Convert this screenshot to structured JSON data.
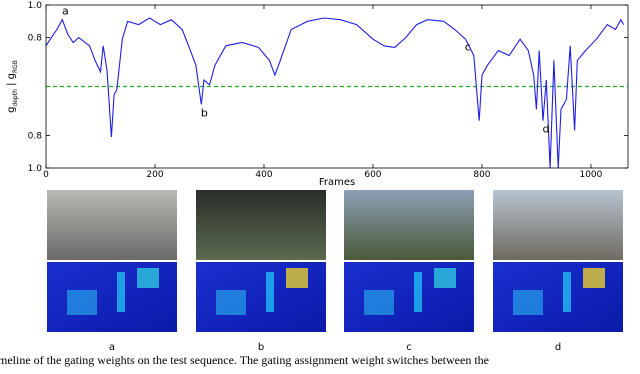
{
  "chart_data": {
    "type": "line",
    "ylabel": [
      "g",
      "depth",
      " | g",
      "RGB"
    ],
    "xlabel": "Frames",
    "x": [
      0,
      10,
      20,
      30,
      40,
      50,
      60,
      80,
      90,
      100,
      105,
      112,
      120,
      125,
      130,
      140,
      150,
      170,
      190,
      210,
      230,
      250,
      265,
      275,
      285,
      290,
      300,
      310,
      330,
      360,
      390,
      410,
      420,
      430,
      450,
      480,
      510,
      540,
      570,
      600,
      620,
      640,
      660,
      680,
      700,
      730,
      750,
      770,
      785,
      795,
      800,
      810,
      830,
      850,
      870,
      885,
      895,
      900,
      905,
      912,
      918,
      925,
      932,
      940,
      945,
      955,
      962,
      970,
      975,
      990,
      1010,
      1030,
      1045,
      1055,
      1060
    ],
    "series": [
      {
        "color": "#1f1fe0",
        "values": [
          0.75,
          0.8,
          0.85,
          0.91,
          0.82,
          0.77,
          0.8,
          0.75,
          0.66,
          0.59,
          0.75,
          0.6,
          0.19,
          0.45,
          0.48,
          0.79,
          0.9,
          0.88,
          0.92,
          0.88,
          0.91,
          0.85,
          0.72,
          0.63,
          0.39,
          0.54,
          0.51,
          0.63,
          0.75,
          0.77,
          0.74,
          0.66,
          0.57,
          0.66,
          0.85,
          0.9,
          0.92,
          0.91,
          0.88,
          0.79,
          0.75,
          0.74,
          0.8,
          0.88,
          0.91,
          0.9,
          0.85,
          0.79,
          0.69,
          0.29,
          0.57,
          0.63,
          0.72,
          0.69,
          0.79,
          0.72,
          0.57,
          0.36,
          0.72,
          0.29,
          0.54,
          0.0,
          0.66,
          0.0,
          0.36,
          0.42,
          0.75,
          0.23,
          0.66,
          0.72,
          0.79,
          0.88,
          0.85,
          0.91,
          0.88
        ]
      }
    ],
    "xlim": [
      0,
      1068
    ],
    "ylim": [
      0,
      1
    ],
    "xticks": [
      0,
      200,
      400,
      600,
      800,
      1000
    ],
    "yticks": [
      {
        "value": 1,
        "label": "1.0"
      },
      0.8,
      {
        "value": 0.2,
        "label": "0.8"
      },
      {
        "value": 0,
        "label": "1.0"
      }
    ],
    "reference_line": {
      "value": 0.5,
      "color": "#22aa22"
    },
    "annotations": [
      {
        "text": "a",
        "x": 30,
        "y": 0.91
      },
      {
        "text": "b",
        "x": 285,
        "y": 0.39
      },
      {
        "text": "c",
        "x": 785,
        "y": 0.69
      },
      {
        "text": "d",
        "x": 912,
        "y": 0.29
      }
    ]
  },
  "panels": [
    "a",
    "b",
    "c",
    "d"
  ],
  "caption": "meline of the gating weights on the test sequence. The gating assignment weight switches between the"
}
